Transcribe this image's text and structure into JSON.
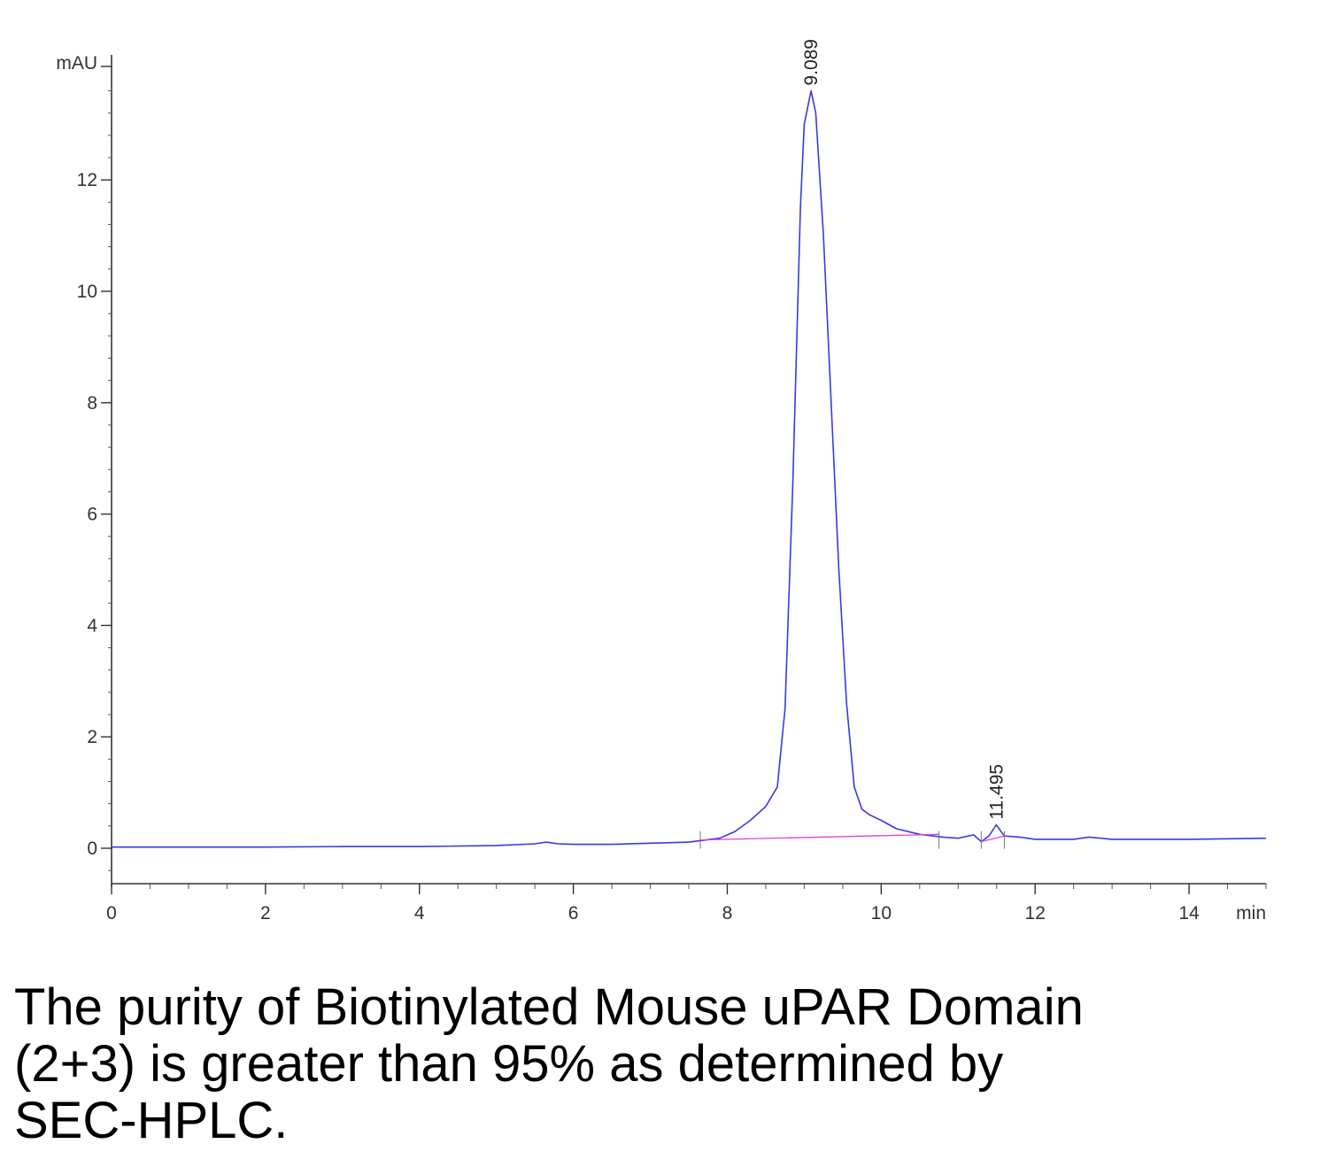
{
  "chart_data": {
    "type": "line",
    "ylabel": "mAU",
    "xunit": "min",
    "xlim": [
      0,
      15
    ],
    "ylim": [
      -0.6,
      14
    ],
    "x_ticks": [
      0,
      2,
      4,
      6,
      8,
      10,
      12,
      14
    ],
    "y_ticks": [
      0,
      2,
      4,
      6,
      8,
      10,
      12
    ],
    "series": [
      {
        "color": "#3a3ae0",
        "x": [
          0,
          1,
          2,
          3,
          4,
          5,
          5.5,
          5.65,
          5.8,
          6,
          6.5,
          7,
          7.5,
          7.9,
          8.1,
          8.3,
          8.5,
          8.65,
          8.75,
          8.85,
          8.95,
          9.0,
          9.089,
          9.15,
          9.25,
          9.35,
          9.45,
          9.55,
          9.65,
          9.75,
          9.85,
          10.0,
          10.2,
          10.5,
          10.8,
          11.0,
          11.2,
          11.3,
          11.4,
          11.495,
          11.6,
          11.8,
          12.0,
          12.5,
          12.7,
          13.0,
          13.5,
          14,
          14.5,
          15
        ],
        "y": [
          0.02,
          0.02,
          0.02,
          0.03,
          0.03,
          0.05,
          0.08,
          0.11,
          0.08,
          0.07,
          0.07,
          0.09,
          0.11,
          0.18,
          0.3,
          0.5,
          0.75,
          1.1,
          2.5,
          6.5,
          11.5,
          13.0,
          13.6,
          13.2,
          11.0,
          8.0,
          5.0,
          2.6,
          1.1,
          0.7,
          0.6,
          0.5,
          0.35,
          0.25,
          0.2,
          0.18,
          0.24,
          0.12,
          0.22,
          0.42,
          0.22,
          0.2,
          0.16,
          0.16,
          0.2,
          0.16,
          0.16,
          0.16,
          0.17,
          0.18
        ]
      },
      {
        "color": "#e040e0",
        "x": [
          7.65,
          10.75
        ],
        "y": [
          0.15,
          0.25
        ]
      },
      {
        "color": "#e040e0",
        "x": [
          11.3,
          11.6
        ],
        "y": [
          0.12,
          0.22
        ]
      }
    ],
    "peak_labels": [
      {
        "text": "9.089",
        "x": 9.089,
        "y": 13.6
      },
      {
        "text": "11.495",
        "x": 11.495,
        "y": 0.42
      }
    ]
  },
  "caption": "The purity of Biotinylated Mouse uPAR Domain\n(2+3) is greater than 95% as determined by\nSEC-HPLC."
}
